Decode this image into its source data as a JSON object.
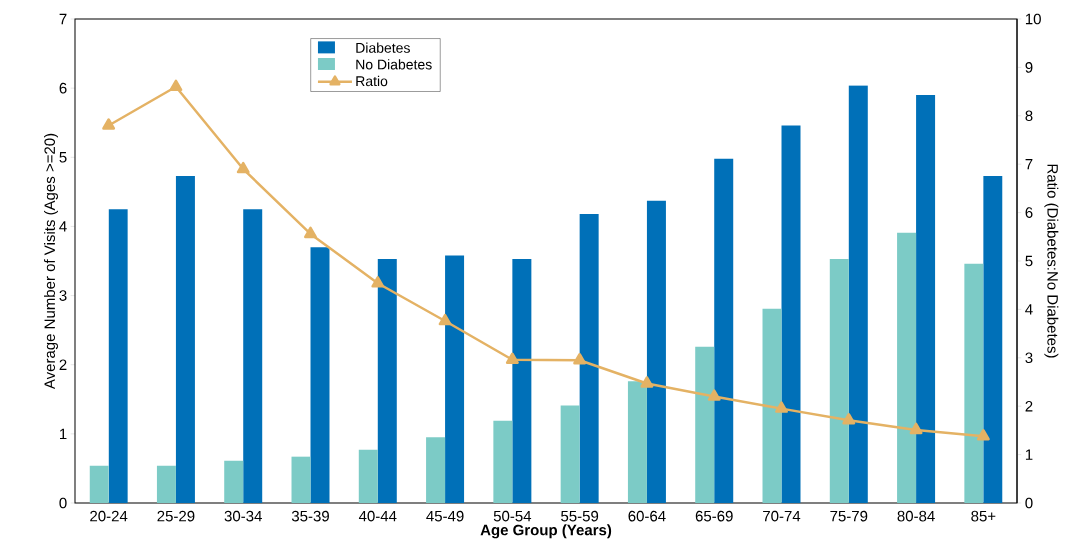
{
  "chart_data": {
    "type": "bar",
    "xlabel": "Age Group (Years)",
    "ylabel": "Average Number of Visits (Ages >=20)",
    "y2label": "Ratio (Diabetes:No Diabetes)",
    "categories": [
      "20-24",
      "25-29",
      "30-34",
      "35-39",
      "40-44",
      "45-49",
      "50-54",
      "55-59",
      "60-64",
      "65-69",
      "70-74",
      "75-79",
      "80-84",
      "85+"
    ],
    "series": [
      {
        "name": "Diabetes",
        "color": "#0070b8",
        "values": [
          4.25,
          4.73,
          4.25,
          3.7,
          3.53,
          3.58,
          3.53,
          4.18,
          4.37,
          4.98,
          5.46,
          6.04,
          5.9,
          4.73
        ]
      },
      {
        "name": "No Diabetes",
        "color": "#7ccbc6",
        "values": [
          0.54,
          0.54,
          0.61,
          0.67,
          0.77,
          0.95,
          1.19,
          1.41,
          1.76,
          2.26,
          2.81,
          3.53,
          3.91,
          3.46
        ]
      },
      {
        "name": "Ratio",
        "type": "line",
        "axis": "y2",
        "color": "#e4b264",
        "marker": "triangle",
        "values": [
          7.8,
          8.6,
          6.9,
          5.56,
          4.54,
          3.76,
          2.96,
          2.95,
          2.47,
          2.2,
          1.95,
          1.71,
          1.51,
          1.38
        ]
      }
    ],
    "ylim": [
      0,
      7
    ],
    "yticks": [
      0,
      1,
      2,
      3,
      4,
      5,
      6,
      7
    ],
    "y2lim": [
      0,
      10
    ],
    "y2ticks": [
      0,
      1,
      2,
      3,
      4,
      5,
      6,
      7,
      8,
      9,
      10
    ],
    "grid": false,
    "legend": "top left"
  }
}
